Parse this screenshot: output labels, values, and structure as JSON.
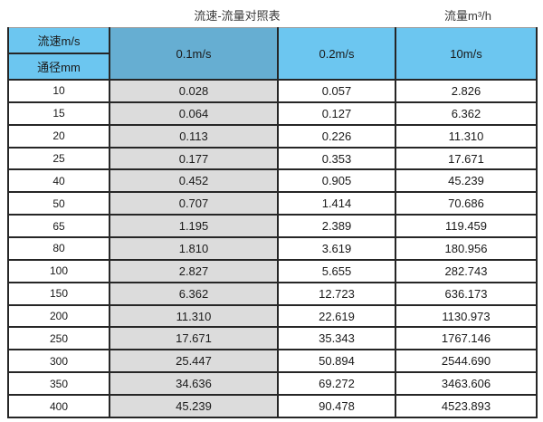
{
  "page": {
    "title": "流速-流量对照表",
    "unit_label": "流量m³/h"
  },
  "colors": {
    "header_blue": "#6cc6f0",
    "header_steel_blue": "#66aed2",
    "gray_column": "#dcdcdc",
    "border_dark": "#262626",
    "border_top_light": "#9a9a9a",
    "text": "#1a1a1a"
  },
  "table": {
    "corner_top_label": "流速m/s",
    "corner_bottom_label": "通径mm",
    "velocity_columns": [
      "0.1m/s",
      "0.2m/s",
      "10m/s"
    ],
    "rows": [
      [
        "10",
        "0.028",
        "0.057",
        "2.826"
      ],
      [
        "15",
        "0.064",
        "0.127",
        "6.362"
      ],
      [
        "20",
        "0.113",
        "0.226",
        "11.310"
      ],
      [
        "25",
        "0.177",
        "0.353",
        "17.671"
      ],
      [
        "40",
        "0.452",
        "0.905",
        "45.239"
      ],
      [
        "50",
        "0.707",
        "1.414",
        "70.686"
      ],
      [
        "65",
        "1.195",
        "2.389",
        "119.459"
      ],
      [
        "80",
        "1.810",
        "3.619",
        "180.956"
      ],
      [
        "100",
        "2.827",
        "5.655",
        "282.743"
      ],
      [
        "150",
        "6.362",
        "12.723",
        "636.173"
      ],
      [
        "200",
        "11.310",
        "22.619",
        "1130.973"
      ],
      [
        "250",
        "17.671",
        "35.343",
        "1767.146"
      ],
      [
        "300",
        "25.447",
        "50.894",
        "2544.690"
      ],
      [
        "350",
        "34.636",
        "69.272",
        "3463.606"
      ],
      [
        "400",
        "45.239",
        "90.478",
        "4523.893"
      ]
    ]
  },
  "chart_data": {
    "type": "table",
    "title": "流速-流量对照表",
    "unit": "流量m³/h",
    "row_header": "通径mm",
    "column_header": "流速m/s",
    "categories": [
      10,
      15,
      20,
      25,
      40,
      50,
      65,
      80,
      100,
      150,
      200,
      250,
      300,
      350,
      400
    ],
    "series": [
      {
        "name": "0.1m/s",
        "values": [
          0.028,
          0.064,
          0.113,
          0.177,
          0.452,
          0.707,
          1.195,
          1.81,
          2.827,
          6.362,
          11.31,
          17.671,
          25.447,
          34.636,
          45.239
        ]
      },
      {
        "name": "0.2m/s",
        "values": [
          0.057,
          0.127,
          0.226,
          0.353,
          0.905,
          1.414,
          2.389,
          3.619,
          5.655,
          12.723,
          22.619,
          35.343,
          50.894,
          69.272,
          90.478
        ]
      },
      {
        "name": "10m/s",
        "values": [
          2.826,
          6.362,
          11.31,
          17.671,
          45.239,
          70.686,
          119.459,
          180.956,
          282.743,
          636.173,
          1130.973,
          1767.146,
          2544.69,
          3463.606,
          4523.893
        ]
      }
    ]
  }
}
